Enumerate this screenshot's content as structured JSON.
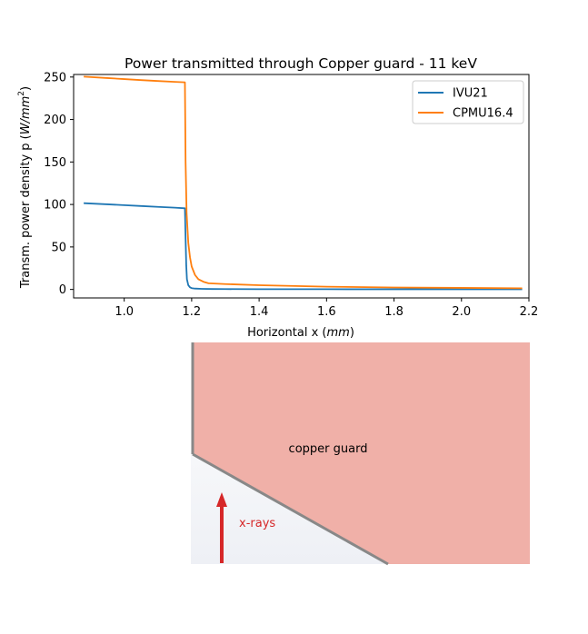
{
  "chart_data": {
    "type": "line",
    "title": "Power transmitted through Copper guard - 11 keV",
    "xlabel_prefix": "Horizontal x (",
    "xlabel_unit": "mm",
    "xlabel_suffix": ")",
    "ylabel_prefix": "Transm. power density p (",
    "ylabel_unit": "W/mm",
    "ylabel_exp": "2",
    "ylabel_suffix": ")",
    "xlim": [
      0.85,
      2.2
    ],
    "ylim": [
      -10,
      253
    ],
    "xticks": [
      1.0,
      1.2,
      1.4,
      1.6,
      1.8,
      2.0,
      2.2
    ],
    "xtick_labels": [
      "1.0",
      "1.2",
      "1.4",
      "1.6",
      "1.8",
      "2.0",
      "2.2"
    ],
    "yticks": [
      0,
      50,
      100,
      150,
      200,
      250
    ],
    "ytick_labels": [
      "0",
      "50",
      "100",
      "150",
      "200",
      "250"
    ],
    "grid": false,
    "legend_position": "top-right",
    "series": [
      {
        "name": "IVU21",
        "color": "#1f77b4",
        "x": [
          0.88,
          0.95,
          1.0,
          1.05,
          1.1,
          1.15,
          1.18,
          1.182,
          1.184,
          1.186,
          1.19,
          1.195,
          1.2,
          1.21,
          1.23,
          1.26,
          1.3,
          1.4,
          1.6,
          1.8,
          2.0,
          2.18
        ],
        "y": [
          101.5,
          100.2,
          99.2,
          98.2,
          97.2,
          96.2,
          95.5,
          60,
          28,
          12,
          5,
          2.5,
          1.5,
          1.0,
          0.7,
          0.5,
          0.4,
          0.3,
          0.25,
          0.2,
          0.2,
          0.2
        ]
      },
      {
        "name": "CPMU16.4",
        "color": "#ff7f0e",
        "x": [
          0.88,
          0.95,
          1.0,
          1.05,
          1.1,
          1.15,
          1.18,
          1.182,
          1.185,
          1.19,
          1.195,
          1.2,
          1.21,
          1.22,
          1.235,
          1.25,
          1.3,
          1.4,
          1.6,
          1.8,
          2.0,
          2.18
        ],
        "y": [
          250.5,
          248.8,
          247.6,
          246.4,
          245.3,
          244.3,
          243.8,
          150,
          90,
          55,
          38,
          27,
          17,
          12,
          9,
          7.2,
          6.3,
          5.0,
          3.2,
          2.3,
          1.8,
          1.4
        ]
      }
    ]
  },
  "diagram": {
    "guard_label": "copper guard",
    "xray_label": "x-rays",
    "guard_color": "#f0b0a8",
    "edge_color": "#888888",
    "xray_color": "#d62728"
  }
}
